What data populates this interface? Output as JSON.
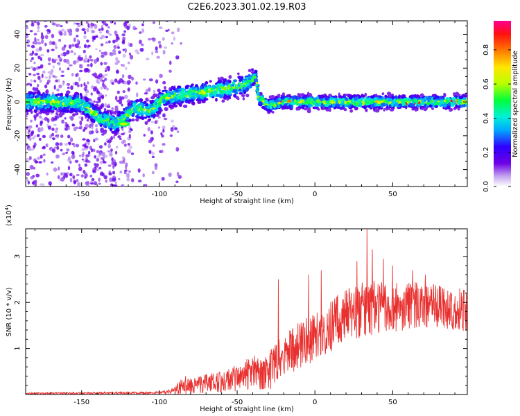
{
  "title": "C2E6.2023.301.02.19.R03",
  "chart_data": [
    {
      "type": "heatmap",
      "xlabel": "Height of straight line (km)",
      "ylabel": "Frequency (Hz)",
      "xlim": [
        -186,
        98
      ],
      "ylim": [
        -50,
        48
      ],
      "xticks": [
        -150,
        -100,
        -50,
        0,
        50
      ],
      "yticks": [
        -40,
        -20,
        0,
        20,
        40
      ],
      "colorbar": {
        "label": "Normalized spectral amplitude",
        "range": [
          0,
          0.97
        ],
        "ticks": [
          "0.0",
          "0.2",
          "0.4",
          "0.6",
          "0.8"
        ],
        "tick_values": [
          0.0,
          0.2,
          0.4,
          0.6,
          0.8
        ]
      },
      "ridge": [
        {
          "x": -186,
          "y": 0
        },
        {
          "x": -170,
          "y": 0
        },
        {
          "x": -150,
          "y": -1
        },
        {
          "x": -138,
          "y": -10
        },
        {
          "x": -128,
          "y": -13
        },
        {
          "x": -116,
          "y": -4
        },
        {
          "x": -105,
          "y": -5
        },
        {
          "x": -98,
          "y": 2
        },
        {
          "x": -85,
          "y": 4
        },
        {
          "x": -70,
          "y": 6
        },
        {
          "x": -55,
          "y": 8
        },
        {
          "x": -45,
          "y": 10
        },
        {
          "x": -38,
          "y": 15
        },
        {
          "x": -36,
          "y": 2
        },
        {
          "x": -30,
          "y": -2
        },
        {
          "x": -20,
          "y": 0
        },
        {
          "x": 0,
          "y": 0
        },
        {
          "x": 30,
          "y": 0
        },
        {
          "x": 60,
          "y": 0
        },
        {
          "x": 98,
          "y": 0
        }
      ]
    },
    {
      "type": "line",
      "xlabel": "Height of straight line (km)",
      "ylabel": "SNR (10 * v/v)",
      "multiplier": "(x10",
      "multiplier_exp": "4",
      "multiplier_close": ")",
      "xlim": [
        -186,
        98
      ],
      "ylim": [
        0,
        3.6
      ],
      "xticks": [
        -150,
        -100,
        -50,
        0,
        50
      ],
      "yticks": [
        1,
        2,
        3
      ],
      "color": "#e8312f",
      "envelope": [
        {
          "x": -186,
          "base": 0.02,
          "amp": 0.02
        },
        {
          "x": -100,
          "base": 0.03,
          "amp": 0.03
        },
        {
          "x": -92,
          "base": 0.05,
          "amp": 0.08
        },
        {
          "x": -85,
          "base": 0.15,
          "amp": 0.28
        },
        {
          "x": -80,
          "base": 0.12,
          "amp": 0.22
        },
        {
          "x": -70,
          "base": 0.18,
          "amp": 0.25
        },
        {
          "x": -60,
          "base": 0.2,
          "amp": 0.3
        },
        {
          "x": -50,
          "base": 0.25,
          "amp": 0.4
        },
        {
          "x": -40,
          "base": 0.35,
          "amp": 0.5
        },
        {
          "x": -33,
          "base": 0.3,
          "amp": 0.45
        },
        {
          "x": -28,
          "base": 0.4,
          "amp": 0.6
        },
        {
          "x": -22,
          "base": 0.7,
          "amp": 0.55
        },
        {
          "x": -10,
          "base": 0.9,
          "amp": 0.65
        },
        {
          "x": 0,
          "base": 1.1,
          "amp": 0.65
        },
        {
          "x": 10,
          "base": 1.3,
          "amp": 0.7
        },
        {
          "x": 20,
          "base": 1.55,
          "amp": 0.75
        },
        {
          "x": 35,
          "base": 1.7,
          "amp": 0.75
        },
        {
          "x": 50,
          "base": 1.75,
          "amp": 0.7
        },
        {
          "x": 70,
          "base": 1.8,
          "amp": 0.6
        },
        {
          "x": 98,
          "base": 1.7,
          "amp": 0.6
        }
      ],
      "spikes": [
        {
          "x": -23.5,
          "y": 2.5
        },
        {
          "x": -4,
          "y": 2.6
        },
        {
          "x": 4,
          "y": 2.7
        },
        {
          "x": 27,
          "y": 2.9
        },
        {
          "x": 33.5,
          "y": 3.6
        },
        {
          "x": 37,
          "y": 3.15
        },
        {
          "x": 44,
          "y": 2.95
        },
        {
          "x": 50,
          "y": 2.8
        },
        {
          "x": 63,
          "y": 2.7
        },
        {
          "x": 71,
          "y": 2.6
        }
      ]
    }
  ]
}
